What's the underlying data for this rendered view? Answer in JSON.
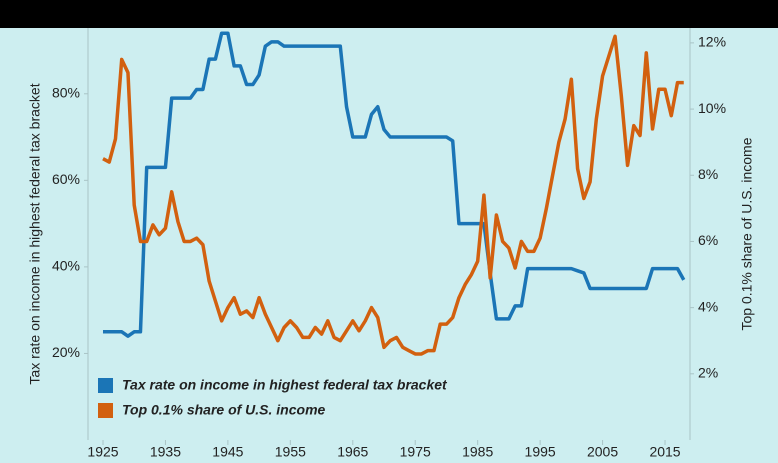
{
  "chart_data": {
    "type": "line",
    "ylabel": "Tax rate on income in highest federal tax bracket",
    "y2label": "Top 0.1% share of U.S. income",
    "x": [
      1925,
      1926,
      1927,
      1928,
      1929,
      1930,
      1931,
      1932,
      1933,
      1934,
      1935,
      1936,
      1937,
      1938,
      1939,
      1940,
      1941,
      1942,
      1943,
      1944,
      1945,
      1946,
      1947,
      1948,
      1949,
      1950,
      1951,
      1952,
      1953,
      1954,
      1955,
      1956,
      1957,
      1958,
      1959,
      1960,
      1961,
      1962,
      1963,
      1964,
      1965,
      1966,
      1967,
      1968,
      1969,
      1970,
      1971,
      1972,
      1973,
      1974,
      1975,
      1976,
      1977,
      1978,
      1979,
      1980,
      1981,
      1982,
      1983,
      1984,
      1985,
      1986,
      1987,
      1988,
      1989,
      1990,
      1991,
      1992,
      1993,
      1994,
      1995,
      1996,
      1997,
      1998,
      1999,
      2000,
      2001,
      2002,
      2003,
      2004,
      2005,
      2006,
      2007,
      2008,
      2009,
      2010,
      2011,
      2012,
      2013,
      2014,
      2015,
      2016,
      2017,
      2018
    ],
    "series": [
      {
        "name": "Tax rate on income in highest federal tax bracket",
        "color": "#1b75b6",
        "values": [
          25,
          25,
          25,
          25,
          24,
          25,
          25,
          63,
          63,
          63,
          63,
          79,
          79,
          79,
          79,
          81,
          81,
          88,
          88,
          94,
          94,
          86.45,
          86.45,
          82.13,
          82.13,
          84.36,
          91,
          92,
          92,
          91,
          91,
          91,
          91,
          91,
          91,
          91,
          91,
          91,
          91,
          77,
          70,
          70,
          70,
          75.25,
          77,
          71.75,
          70,
          70,
          70,
          70,
          70,
          70,
          70,
          70,
          70,
          70,
          69.13,
          50,
          50,
          50,
          50,
          50,
          38.5,
          28,
          28,
          28,
          31,
          31,
          39.6,
          39.6,
          39.6,
          39.6,
          39.6,
          39.6,
          39.6,
          39.6,
          39.1,
          38.6,
          35,
          35,
          35,
          35,
          35,
          35,
          35,
          35,
          35,
          35,
          39.6,
          39.6,
          39.6,
          39.6,
          39.6,
          37
        ]
      },
      {
        "name": "Top 0.1% share of U.S. income",
        "color": "#d2600f",
        "axis": "y2",
        "values": [
          8.5,
          8.4,
          9.1,
          11.5,
          11.1,
          7.1,
          6.0,
          6.0,
          6.5,
          6.2,
          6.4,
          7.5,
          6.6,
          6.0,
          6.0,
          6.1,
          5.9,
          4.8,
          4.2,
          3.6,
          4.0,
          4.3,
          3.8,
          3.9,
          3.7,
          4.3,
          3.8,
          3.4,
          3.0,
          3.4,
          3.6,
          3.4,
          3.1,
          3.1,
          3.4,
          3.2,
          3.6,
          3.1,
          3.0,
          3.3,
          3.6,
          3.3,
          3.6,
          4.0,
          3.7,
          2.8,
          3.0,
          3.1,
          2.8,
          2.7,
          2.6,
          2.6,
          2.7,
          2.7,
          3.5,
          3.5,
          3.7,
          4.3,
          4.7,
          5.0,
          5.4,
          7.4,
          4.9,
          6.8,
          6.0,
          5.8,
          5.2,
          6.0,
          5.7,
          5.7,
          6.1,
          7.0,
          8.0,
          9.0,
          9.7,
          10.9,
          8.2,
          7.3,
          7.8,
          9.7,
          11.0,
          11.6,
          12.2,
          10.4,
          8.3,
          9.5,
          9.2,
          11.7,
          9.4,
          10.6,
          10.6,
          9.8,
          10.8,
          10.8
        ]
      }
    ],
    "xlim": [
      1922.6,
      2019
    ],
    "xticks": [
      1925,
      1935,
      1945,
      1955,
      1965,
      1975,
      1985,
      1995,
      2005,
      2015
    ],
    "ylim": [
      0,
      95.2
    ],
    "yticks": [
      {
        "value": 20,
        "label": "20%"
      },
      {
        "value": 40,
        "label": "40%"
      },
      {
        "value": 60,
        "label": "60%"
      },
      {
        "value": 80,
        "label": "80%"
      }
    ],
    "y2lim": [
      0,
      12.45
    ],
    "y2ticks": [
      {
        "value": 2,
        "label": "2%"
      },
      {
        "value": 4,
        "label": "4%"
      },
      {
        "value": 6,
        "label": "6%"
      },
      {
        "value": 8,
        "label": "8%"
      },
      {
        "value": 10,
        "label": "10%"
      },
      {
        "value": 12,
        "label": "12%"
      }
    ],
    "legend": "lower left"
  }
}
